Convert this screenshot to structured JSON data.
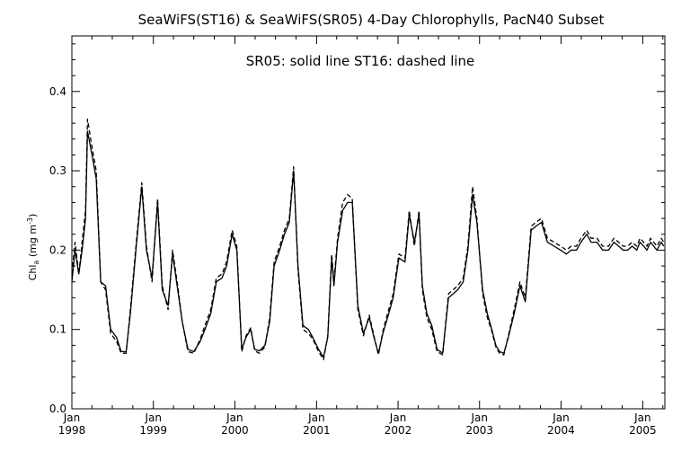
{
  "chart_data": {
    "type": "line",
    "title": "SeaWiFS(ST16) & SeaWiFS(SR05) 4-Day Chlorophylls, PacN40 Subset",
    "subtitle": "SR05: solid line    ST16: dashed line",
    "ylabel": "Chl",
    "ylabel_subscript": "a",
    "ylabel_units": "(mg m",
    "ylabel_units_exp": "-3",
    "ylabel_units_close": ")",
    "ylim": [
      0.0,
      0.47
    ],
    "xlim": [
      "1998-01-01",
      "2005-04-10"
    ],
    "y_ticks": [
      "0.0",
      "0.1",
      "0.2",
      "0.3",
      "0.4"
    ],
    "x_ticks": [
      {
        "month": "Jan",
        "year": "1998"
      },
      {
        "month": "Jan",
        "year": "1999"
      },
      {
        "month": "Jan",
        "year": "2000"
      },
      {
        "month": "Jan",
        "year": "2001"
      },
      {
        "month": "Jan",
        "year": "2002"
      },
      {
        "month": "Jan",
        "year": "2003"
      },
      {
        "month": "Jan",
        "year": "2004"
      },
      {
        "month": "Jan",
        "year": "2005"
      }
    ],
    "grid": false,
    "legend": "none",
    "series": [
      {
        "name": "SR05",
        "style": "solid",
        "color": "#000000",
        "x": [
          "1998-01-01",
          "1998-01-15",
          "1998-02-01",
          "1998-02-16",
          "1998-03-03",
          "1998-03-12",
          "1998-04-01",
          "1998-04-20",
          "1998-05-10",
          "1998-06-01",
          "1998-06-24",
          "1998-07-20",
          "1998-08-10",
          "1998-09-01",
          "1998-09-20",
          "1998-10-15",
          "1998-11-10",
          "1998-12-01",
          "1998-12-26",
          "1999-01-20",
          "1999-02-10",
          "1999-03-08",
          "1999-03-28",
          "1999-04-20",
          "1999-05-10",
          "1999-06-05",
          "1999-07-01",
          "1999-07-30",
          "1999-08-20",
          "1999-09-15",
          "1999-10-10",
          "1999-11-05",
          "1999-11-25",
          "1999-12-20",
          "2000-01-10",
          "2000-02-01",
          "2000-02-20",
          "2000-03-12",
          "2000-03-30",
          "2000-04-20",
          "2000-05-15",
          "2000-06-05",
          "2000-06-25",
          "2000-07-20",
          "2000-08-10",
          "2000-09-01",
          "2000-09-20",
          "2000-10-10",
          "2000-11-01",
          "2000-11-25",
          "2000-12-15",
          "2001-01-10",
          "2001-02-01",
          "2001-02-20",
          "2001-03-10",
          "2001-03-20",
          "2001-04-05",
          "2001-04-28",
          "2001-05-20",
          "2001-06-10",
          "2001-07-05",
          "2001-07-30",
          "2001-08-25",
          "2001-09-15",
          "2001-10-05",
          "2001-10-25",
          "2001-11-15",
          "2001-12-10",
          "2002-01-05",
          "2002-02-01",
          "2002-02-20",
          "2002-03-15",
          "2002-04-05",
          "2002-04-20",
          "2002-05-10",
          "2002-06-01",
          "2002-06-25",
          "2002-07-20",
          "2002-08-15",
          "2002-09-05",
          "2002-09-25",
          "2002-10-20",
          "2002-11-10",
          "2002-12-01",
          "2002-12-20",
          "2003-01-15",
          "2003-02-05",
          "2003-02-25",
          "2003-03-15",
          "2003-04-01",
          "2003-04-20",
          "2003-05-10",
          "2003-06-05",
          "2003-07-01",
          "2003-07-25",
          "2003-08-20",
          "2003-09-10",
          "2003-10-05",
          "2003-11-01",
          "2003-12-01",
          "2003-12-30",
          "2004-01-25",
          "2004-02-15",
          "2004-03-10",
          "2004-03-30",
          "2004-04-25",
          "2004-05-15",
          "2004-06-10",
          "2004-07-05",
          "2004-08-01",
          "2004-08-25",
          "2004-09-15",
          "2004-10-05",
          "2004-10-25",
          "2004-11-15",
          "2004-12-05",
          "2004-12-20",
          "2005-01-05",
          "2005-01-20",
          "2005-02-05",
          "2005-03-05",
          "2005-03-25",
          "2005-04-05"
        ],
        "y": [
          0.16,
          0.2,
          0.17,
          0.2,
          0.24,
          0.35,
          0.32,
          0.29,
          0.16,
          0.155,
          0.1,
          0.09,
          0.072,
          0.072,
          0.12,
          0.2,
          0.28,
          0.2,
          0.165,
          0.26,
          0.15,
          0.13,
          0.195,
          0.15,
          0.11,
          0.075,
          0.072,
          0.085,
          0.1,
          0.12,
          0.16,
          0.165,
          0.18,
          0.22,
          0.2,
          0.075,
          0.09,
          0.1,
          0.075,
          0.073,
          0.08,
          0.11,
          0.18,
          0.2,
          0.22,
          0.235,
          0.3,
          0.18,
          0.105,
          0.1,
          0.09,
          0.075,
          0.065,
          0.09,
          0.19,
          0.155,
          0.21,
          0.25,
          0.26,
          0.26,
          0.13,
          0.095,
          0.115,
          0.09,
          0.07,
          0.095,
          0.115,
          0.14,
          0.19,
          0.185,
          0.245,
          0.21,
          0.245,
          0.155,
          0.12,
          0.105,
          0.075,
          0.07,
          0.14,
          0.145,
          0.15,
          0.16,
          0.2,
          0.27,
          0.235,
          0.15,
          0.12,
          0.1,
          0.08,
          0.072,
          0.07,
          0.09,
          0.12,
          0.155,
          0.135,
          0.225,
          0.23,
          0.235,
          0.21,
          0.205,
          0.2,
          0.195,
          0.2,
          0.2,
          0.21,
          0.22,
          0.21,
          0.21,
          0.2,
          0.2,
          0.21,
          0.205,
          0.2,
          0.2,
          0.205,
          0.2,
          0.21,
          0.205,
          0.2,
          0.21,
          0.2,
          0.21,
          0.205
        ]
      },
      {
        "name": "ST16",
        "style": "dashed",
        "color": "#000000",
        "x": [
          "1998-01-01",
          "1998-01-15",
          "1998-02-01",
          "1998-02-16",
          "1998-03-03",
          "1998-03-12",
          "1998-04-01",
          "1998-04-20",
          "1998-05-10",
          "1998-06-01",
          "1998-06-24",
          "1998-07-20",
          "1998-08-10",
          "1998-09-01",
          "1998-09-20",
          "1998-10-15",
          "1998-11-10",
          "1998-12-01",
          "1998-12-26",
          "1999-01-20",
          "1999-02-10",
          "1999-03-08",
          "1999-03-28",
          "1999-04-20",
          "1999-05-10",
          "1999-06-05",
          "1999-07-01",
          "1999-07-30",
          "1999-08-20",
          "1999-09-15",
          "1999-10-10",
          "1999-11-05",
          "1999-11-25",
          "1999-12-20",
          "2000-01-10",
          "2000-02-01",
          "2000-02-20",
          "2000-03-12",
          "2000-03-30",
          "2000-04-20",
          "2000-05-15",
          "2000-06-05",
          "2000-06-25",
          "2000-07-20",
          "2000-08-10",
          "2000-09-01",
          "2000-09-20",
          "2000-10-10",
          "2000-11-01",
          "2000-11-25",
          "2000-12-15",
          "2001-01-10",
          "2001-02-01",
          "2001-02-20",
          "2001-03-10",
          "2001-03-20",
          "2001-04-05",
          "2001-04-28",
          "2001-05-20",
          "2001-06-10",
          "2001-07-05",
          "2001-07-30",
          "2001-08-25",
          "2001-09-15",
          "2001-10-05",
          "2001-10-25",
          "2001-11-15",
          "2001-12-10",
          "2002-01-05",
          "2002-02-01",
          "2002-02-20",
          "2002-03-15",
          "2002-04-05",
          "2002-04-20",
          "2002-05-10",
          "2002-06-01",
          "2002-06-25",
          "2002-07-20",
          "2002-08-15",
          "2002-09-05",
          "2002-09-25",
          "2002-10-20",
          "2002-11-10",
          "2002-12-01",
          "2002-12-20",
          "2003-01-15",
          "2003-02-05",
          "2003-02-25",
          "2003-03-15",
          "2003-04-01",
          "2003-04-20",
          "2003-05-10",
          "2003-06-05",
          "2003-07-01",
          "2003-07-25",
          "2003-08-20",
          "2003-09-10",
          "2003-10-05",
          "2003-11-01",
          "2003-12-01",
          "2003-12-30",
          "2004-01-25",
          "2004-02-15",
          "2004-03-10",
          "2004-03-30",
          "2004-04-25",
          "2004-05-15",
          "2004-06-10",
          "2004-07-05",
          "2004-08-01",
          "2004-08-25",
          "2004-09-15",
          "2004-10-05",
          "2004-10-25",
          "2004-11-15",
          "2004-12-05",
          "2004-12-20",
          "2005-01-05",
          "2005-01-20",
          "2005-02-05",
          "2005-03-05",
          "2005-03-25",
          "2005-04-05"
        ],
        "y": [
          0.17,
          0.21,
          0.17,
          0.21,
          0.25,
          0.365,
          0.33,
          0.3,
          0.16,
          0.15,
          0.095,
          0.085,
          0.07,
          0.07,
          0.125,
          0.205,
          0.285,
          0.205,
          0.16,
          0.265,
          0.155,
          0.125,
          0.2,
          0.155,
          0.11,
          0.072,
          0.07,
          0.088,
          0.105,
          0.125,
          0.165,
          0.17,
          0.185,
          0.225,
          0.205,
          0.072,
          0.092,
          0.102,
          0.073,
          0.07,
          0.078,
          0.115,
          0.185,
          0.205,
          0.225,
          0.24,
          0.305,
          0.175,
          0.1,
          0.095,
          0.088,
          0.072,
          0.062,
          0.092,
          0.195,
          0.16,
          0.215,
          0.26,
          0.27,
          0.265,
          0.125,
          0.092,
          0.118,
          0.092,
          0.068,
          0.098,
          0.12,
          0.145,
          0.195,
          0.19,
          0.25,
          0.205,
          0.25,
          0.15,
          0.115,
          0.1,
          0.072,
          0.068,
          0.145,
          0.15,
          0.155,
          0.165,
          0.205,
          0.28,
          0.24,
          0.145,
          0.115,
          0.098,
          0.078,
          0.07,
          0.068,
          0.092,
          0.125,
          0.16,
          0.14,
          0.23,
          0.235,
          0.24,
          0.215,
          0.21,
          0.205,
          0.2,
          0.205,
          0.205,
          0.215,
          0.225,
          0.215,
          0.215,
          0.205,
          0.205,
          0.215,
          0.21,
          0.205,
          0.205,
          0.21,
          0.205,
          0.215,
          0.21,
          0.205,
          0.215,
          0.205,
          0.215,
          0.21
        ]
      }
    ]
  }
}
